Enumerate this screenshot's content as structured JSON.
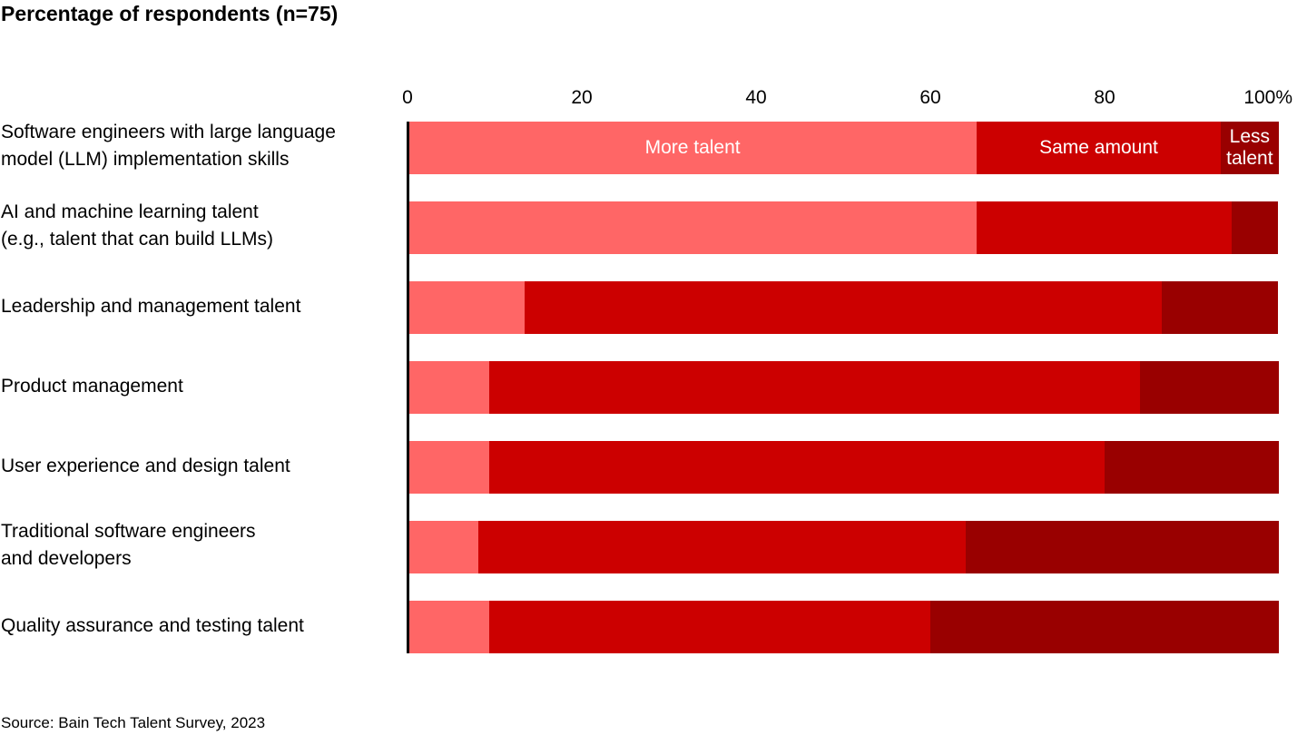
{
  "title": "Percentage of respondents (n=75)",
  "source": "Source: Bain Tech Talent Survey, 2023",
  "axis": {
    "ticks": [
      "0",
      "20",
      "40",
      "60",
      "80",
      "100%"
    ]
  },
  "colors": {
    "more": "#ff6666",
    "same": "#cc0000",
    "less": "#990000"
  },
  "inline_labels": {
    "more": "More talent",
    "same": "Same amount",
    "less_line1": "Less",
    "less_line2": "talent"
  },
  "chart_data": {
    "type": "bar",
    "orientation": "horizontal",
    "stacked": true,
    "title": "Percentage of respondents (n=75)",
    "xlabel": "",
    "ylabel": "",
    "xlim": [
      0,
      100
    ],
    "x_ticks": [
      "0",
      "20",
      "40",
      "60",
      "80",
      "100%"
    ],
    "grid": false,
    "legend": "inline labels on first bar",
    "categories": [
      "Software engineers with large language model (LLM) implementation skills",
      "AI and machine learning talent (e.g., talent that can build LLMs)",
      "Leadership and management talent",
      "Product management",
      "User experience and design talent",
      "Traditional software engineers and developers",
      "Quality assurance and testing talent"
    ],
    "series": [
      {
        "name": "More talent",
        "color": "#ff6666",
        "values": [
          65.3,
          65.3,
          13.3,
          9.3,
          9.3,
          8.0,
          9.3
        ]
      },
      {
        "name": "Same amount",
        "color": "#cc0000",
        "values": [
          28.0,
          29.3,
          73.3,
          74.7,
          70.7,
          56.0,
          50.7
        ]
      },
      {
        "name": "Less talent",
        "color": "#990000",
        "values": [
          6.7,
          5.3,
          13.3,
          16.0,
          20.0,
          36.0,
          40.0
        ]
      }
    ],
    "source": "Source: Bain Tech Talent Survey, 2023"
  },
  "rows": [
    {
      "label_line1": "Software engineers with large language",
      "label_line2": "model (LLM) implementation skills"
    },
    {
      "label_line1": "AI and machine learning talent",
      "label_line2": "(e.g., talent that can build LLMs)"
    },
    {
      "label_line1": "Leadership and management talent",
      "label_line2": ""
    },
    {
      "label_line1": "Product management",
      "label_line2": ""
    },
    {
      "label_line1": "User experience and design talent",
      "label_line2": ""
    },
    {
      "label_line1": "Traditional software engineers",
      "label_line2": "and developers"
    },
    {
      "label_line1": "Quality assurance and testing talent",
      "label_line2": ""
    }
  ]
}
